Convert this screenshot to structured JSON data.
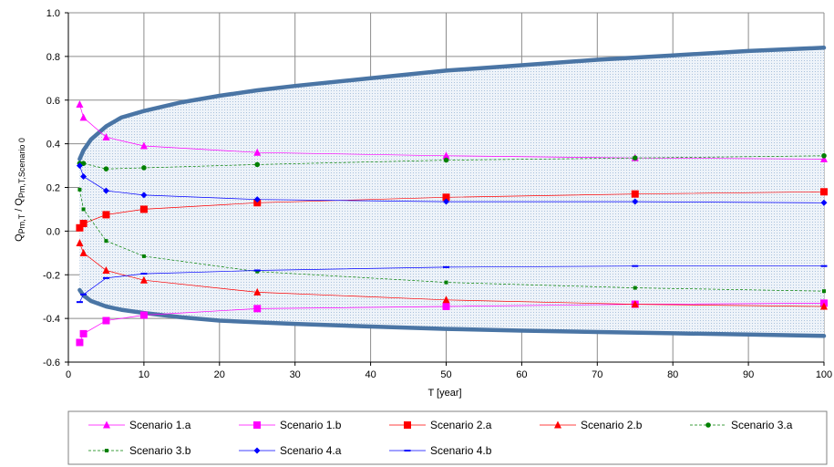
{
  "chart_data": {
    "type": "scatter",
    "title": "",
    "xlabel": "T [year]",
    "ylabel_parts": {
      "q1": "Q",
      "sub1": "Pm,T",
      "sep": " / ",
      "q2": "Q",
      "sub2": "Pm,T,Scenario 0"
    },
    "xlim": [
      0,
      100
    ],
    "ylim": [
      -0.6,
      1.0
    ],
    "x_ticks": [
      0,
      10,
      20,
      30,
      40,
      50,
      60,
      70,
      80,
      90,
      100
    ],
    "y_ticks": [
      -0.6,
      -0.4,
      -0.2,
      0.0,
      0.2,
      0.4,
      0.6,
      0.8,
      1.0
    ],
    "x_tick_labels": [
      "0",
      "10",
      "20",
      "30",
      "40",
      "50",
      "60",
      "70",
      "80",
      "90",
      "100"
    ],
    "y_tick_labels": [
      "-0.6",
      "-0.4",
      "-0.2",
      "0.0",
      "0.2",
      "0.4",
      "0.6",
      "0.8",
      "1.0"
    ],
    "grid": true,
    "legend_position": "bottom",
    "envelope": {
      "color": "#4A75A5",
      "fill_color": "#D6E4F0",
      "x": [
        1.5,
        2,
        3,
        5,
        7,
        10,
        15,
        20,
        25,
        30,
        40,
        50,
        60,
        70,
        80,
        90,
        100
      ],
      "upper": [
        0.33,
        0.37,
        0.42,
        0.48,
        0.52,
        0.55,
        0.59,
        0.62,
        0.645,
        0.665,
        0.7,
        0.735,
        0.76,
        0.785,
        0.805,
        0.825,
        0.84
      ],
      "lower": [
        -0.27,
        -0.295,
        -0.32,
        -0.345,
        -0.36,
        -0.375,
        -0.395,
        -0.41,
        -0.418,
        -0.425,
        -0.437,
        -0.448,
        -0.456,
        -0.462,
        -0.468,
        -0.474,
        -0.48
      ]
    },
    "series": [
      {
        "name": "Scenario 1.a",
        "color": "#FF00FF",
        "marker": "triangle",
        "line": "solid",
        "x": [
          1.5,
          2,
          5,
          10,
          25,
          50,
          75,
          100
        ],
        "y": [
          0.58,
          0.52,
          0.43,
          0.39,
          0.36,
          0.345,
          0.335,
          0.33
        ]
      },
      {
        "name": "Scenario 1.b",
        "color": "#FF00FF",
        "marker": "square",
        "line": "solid",
        "x": [
          1.5,
          2,
          5,
          10,
          25,
          50,
          75,
          100
        ],
        "y": [
          -0.51,
          -0.47,
          -0.41,
          -0.385,
          -0.355,
          -0.345,
          -0.335,
          -0.33
        ]
      },
      {
        "name": "Scenario 2.a",
        "color": "#FF0000",
        "marker": "square",
        "line": "solid",
        "x": [
          1.5,
          2,
          5,
          10,
          25,
          50,
          75,
          100
        ],
        "y": [
          0.015,
          0.035,
          0.075,
          0.1,
          0.13,
          0.155,
          0.17,
          0.18
        ]
      },
      {
        "name": "Scenario 2.b",
        "color": "#FF0000",
        "marker": "triangle",
        "line": "solid",
        "x": [
          1.5,
          2,
          5,
          10,
          25,
          50,
          75,
          100
        ],
        "y": [
          -0.055,
          -0.1,
          -0.18,
          -0.225,
          -0.28,
          -0.315,
          -0.335,
          -0.345
        ]
      },
      {
        "name": "Scenario 3.a",
        "color": "#008000",
        "marker": "circle",
        "line": "dashed",
        "x": [
          1.5,
          2,
          5,
          10,
          25,
          50,
          75,
          100
        ],
        "y": [
          0.31,
          0.31,
          0.285,
          0.29,
          0.305,
          0.325,
          0.335,
          0.345
        ]
      },
      {
        "name": "Scenario 3.b",
        "color": "#008000",
        "marker": "smallsquare",
        "line": "dashed",
        "x": [
          1.5,
          2,
          5,
          10,
          25,
          50,
          75,
          100
        ],
        "y": [
          0.19,
          0.1,
          -0.045,
          -0.115,
          -0.185,
          -0.235,
          -0.26,
          -0.275
        ]
      },
      {
        "name": "Scenario 4.a",
        "color": "#0000FF",
        "marker": "diamond",
        "line": "solid",
        "x": [
          1.5,
          2,
          5,
          10,
          25,
          50,
          75,
          100
        ],
        "y": [
          0.3,
          0.25,
          0.185,
          0.165,
          0.145,
          0.135,
          0.135,
          0.13
        ]
      },
      {
        "name": "Scenario 4.b",
        "color": "#0000FF",
        "marker": "dash",
        "line": "solid",
        "x": [
          1.5,
          2,
          5,
          10,
          25,
          50,
          75,
          100
        ],
        "y": [
          -0.325,
          -0.29,
          -0.215,
          -0.195,
          -0.18,
          -0.165,
          -0.16,
          -0.16
        ]
      }
    ]
  }
}
